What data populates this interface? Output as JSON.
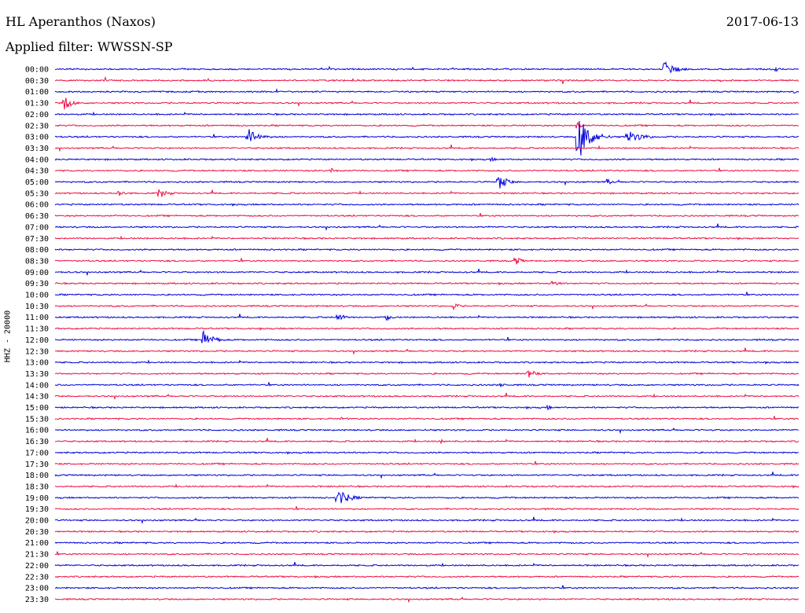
{
  "header": {
    "station": "HL Aperanthos (Naxos)",
    "date": "2017-06-13",
    "filter": "Applied filter: WWSSN-SP",
    "channel": "HHZ - 20000"
  },
  "colors": {
    "trace_a": "#0000dd",
    "trace_b": "#ee1144"
  },
  "chart_data": {
    "type": "helicorder",
    "title": "HL Aperanthos (Naxos)",
    "date": "2017-06-13",
    "ylabel": "HHZ - 20000",
    "row_labels": [
      "00:00",
      "00:30",
      "01:00",
      "01:30",
      "02:00",
      "02:30",
      "03:00",
      "03:30",
      "04:00",
      "04:30",
      "05:00",
      "05:30",
      "06:00",
      "06:30",
      "07:00",
      "07:30",
      "08:00",
      "08:30",
      "09:00",
      "09:30",
      "10:00",
      "10:30",
      "11:00",
      "11:30",
      "12:00",
      "12:30",
      "13:00",
      "13:30",
      "14:00",
      "14:30",
      "15:00",
      "15:30",
      "16:00",
      "16:30",
      "17:00",
      "17:30",
      "18:00",
      "18:30",
      "19:00",
      "19:30",
      "20:00",
      "20:30",
      "21:00",
      "21:30",
      "22:00",
      "22:30",
      "23:00",
      "23:30"
    ],
    "row_minutes": 30,
    "colors_alternate": [
      "blue",
      "red"
    ],
    "events": [
      {
        "row": "00:00",
        "minute": 24.5,
        "amplitude": 12,
        "duration": 1.5
      },
      {
        "row": "00:00",
        "minute": 29.0,
        "amplitude": 4,
        "duration": 1.0
      },
      {
        "row": "01:00",
        "minute": 29.8,
        "amplitude": 6,
        "duration": 0.5
      },
      {
        "row": "01:30",
        "minute": 0.3,
        "amplitude": 12,
        "duration": 1.0
      },
      {
        "row": "02:30",
        "minute": 21.0,
        "amplitude": 10,
        "duration": 0.6
      },
      {
        "row": "03:00",
        "minute": 7.7,
        "amplitude": 14,
        "duration": 1.5
      },
      {
        "row": "03:00",
        "minute": 21.0,
        "amplitude": 40,
        "duration": 1.5
      },
      {
        "row": "03:00",
        "minute": 23.0,
        "amplitude": 10,
        "duration": 2.0
      },
      {
        "row": "04:00",
        "minute": 17.5,
        "amplitude": 4,
        "duration": 0.8
      },
      {
        "row": "04:30",
        "minute": 11.0,
        "amplitude": 5,
        "duration": 1.0
      },
      {
        "row": "05:00",
        "minute": 17.8,
        "amplitude": 13,
        "duration": 1.2
      },
      {
        "row": "05:00",
        "minute": 22.2,
        "amplitude": 6,
        "duration": 0.8
      },
      {
        "row": "05:30",
        "minute": 2.5,
        "amplitude": 6,
        "duration": 1.0
      },
      {
        "row": "05:30",
        "minute": 4.1,
        "amplitude": 9,
        "duration": 1.2
      },
      {
        "row": "08:30",
        "minute": 18.5,
        "amplitude": 10,
        "duration": 0.7
      },
      {
        "row": "09:30",
        "minute": 20.0,
        "amplitude": 6,
        "duration": 1.0
      },
      {
        "row": "10:30",
        "minute": 16.0,
        "amplitude": 6,
        "duration": 0.8
      },
      {
        "row": "11:00",
        "minute": 11.3,
        "amplitude": 8,
        "duration": 1.0
      },
      {
        "row": "11:00",
        "minute": 13.3,
        "amplitude": 5,
        "duration": 1.0
      },
      {
        "row": "12:00",
        "minute": 5.9,
        "amplitude": 14,
        "duration": 1.3
      },
      {
        "row": "13:30",
        "minute": 19.0,
        "amplitude": 9,
        "duration": 1.0
      },
      {
        "row": "14:00",
        "minute": 17.9,
        "amplitude": 4,
        "duration": 0.8
      },
      {
        "row": "15:00",
        "minute": 19.8,
        "amplitude": 4,
        "duration": 0.8
      },
      {
        "row": "15:30",
        "minute": 11.5,
        "amplitude": 4,
        "duration": 0.8
      },
      {
        "row": "16:30",
        "minute": 15.5,
        "amplitude": 4,
        "duration": 0.8
      },
      {
        "row": "17:00",
        "minute": 11.6,
        "amplitude": 7,
        "duration": 0.2
      },
      {
        "row": "19:00",
        "minute": 11.3,
        "amplitude": 14,
        "duration": 1.5
      }
    ]
  }
}
